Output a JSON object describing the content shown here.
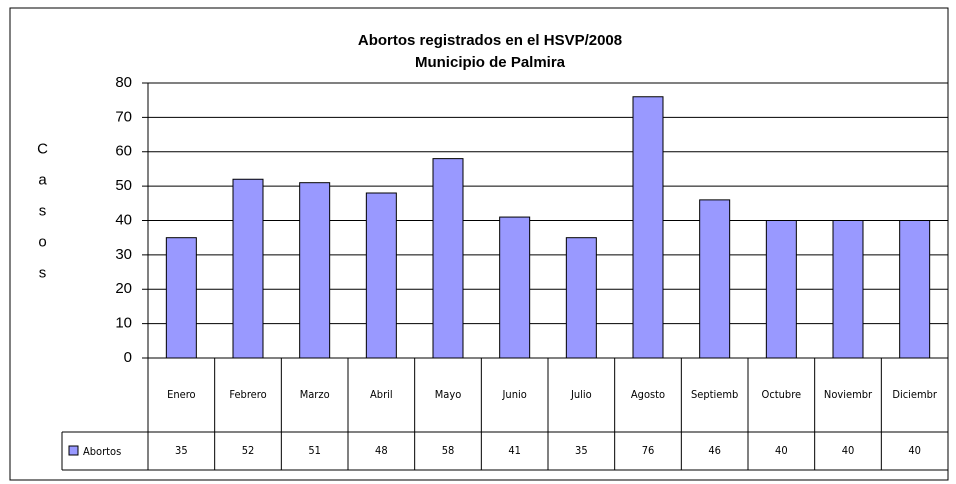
{
  "chart_data": {
    "type": "bar",
    "title": "Abortos registrados en el HSVP/2008",
    "subtitle": "Municipio de Palmira",
    "y_label": "Casos",
    "categories": [
      "Enero",
      "Febrero",
      "Marzo",
      "Abril",
      "Mayo",
      "Junio",
      "Julio",
      "Agosto",
      "Septiemb",
      "Octubre",
      "Noviembr",
      "Diciembr"
    ],
    "series": [
      {
        "name": "Abortos",
        "color": "#9999ff",
        "values": [
          35,
          52,
          51,
          48,
          58,
          41,
          35,
          76,
          46,
          40,
          40,
          40
        ]
      }
    ],
    "ylim": [
      0,
      80
    ],
    "yticks": [
      0,
      10,
      20,
      30,
      40,
      50,
      60,
      70,
      80
    ],
    "grid": true
  }
}
